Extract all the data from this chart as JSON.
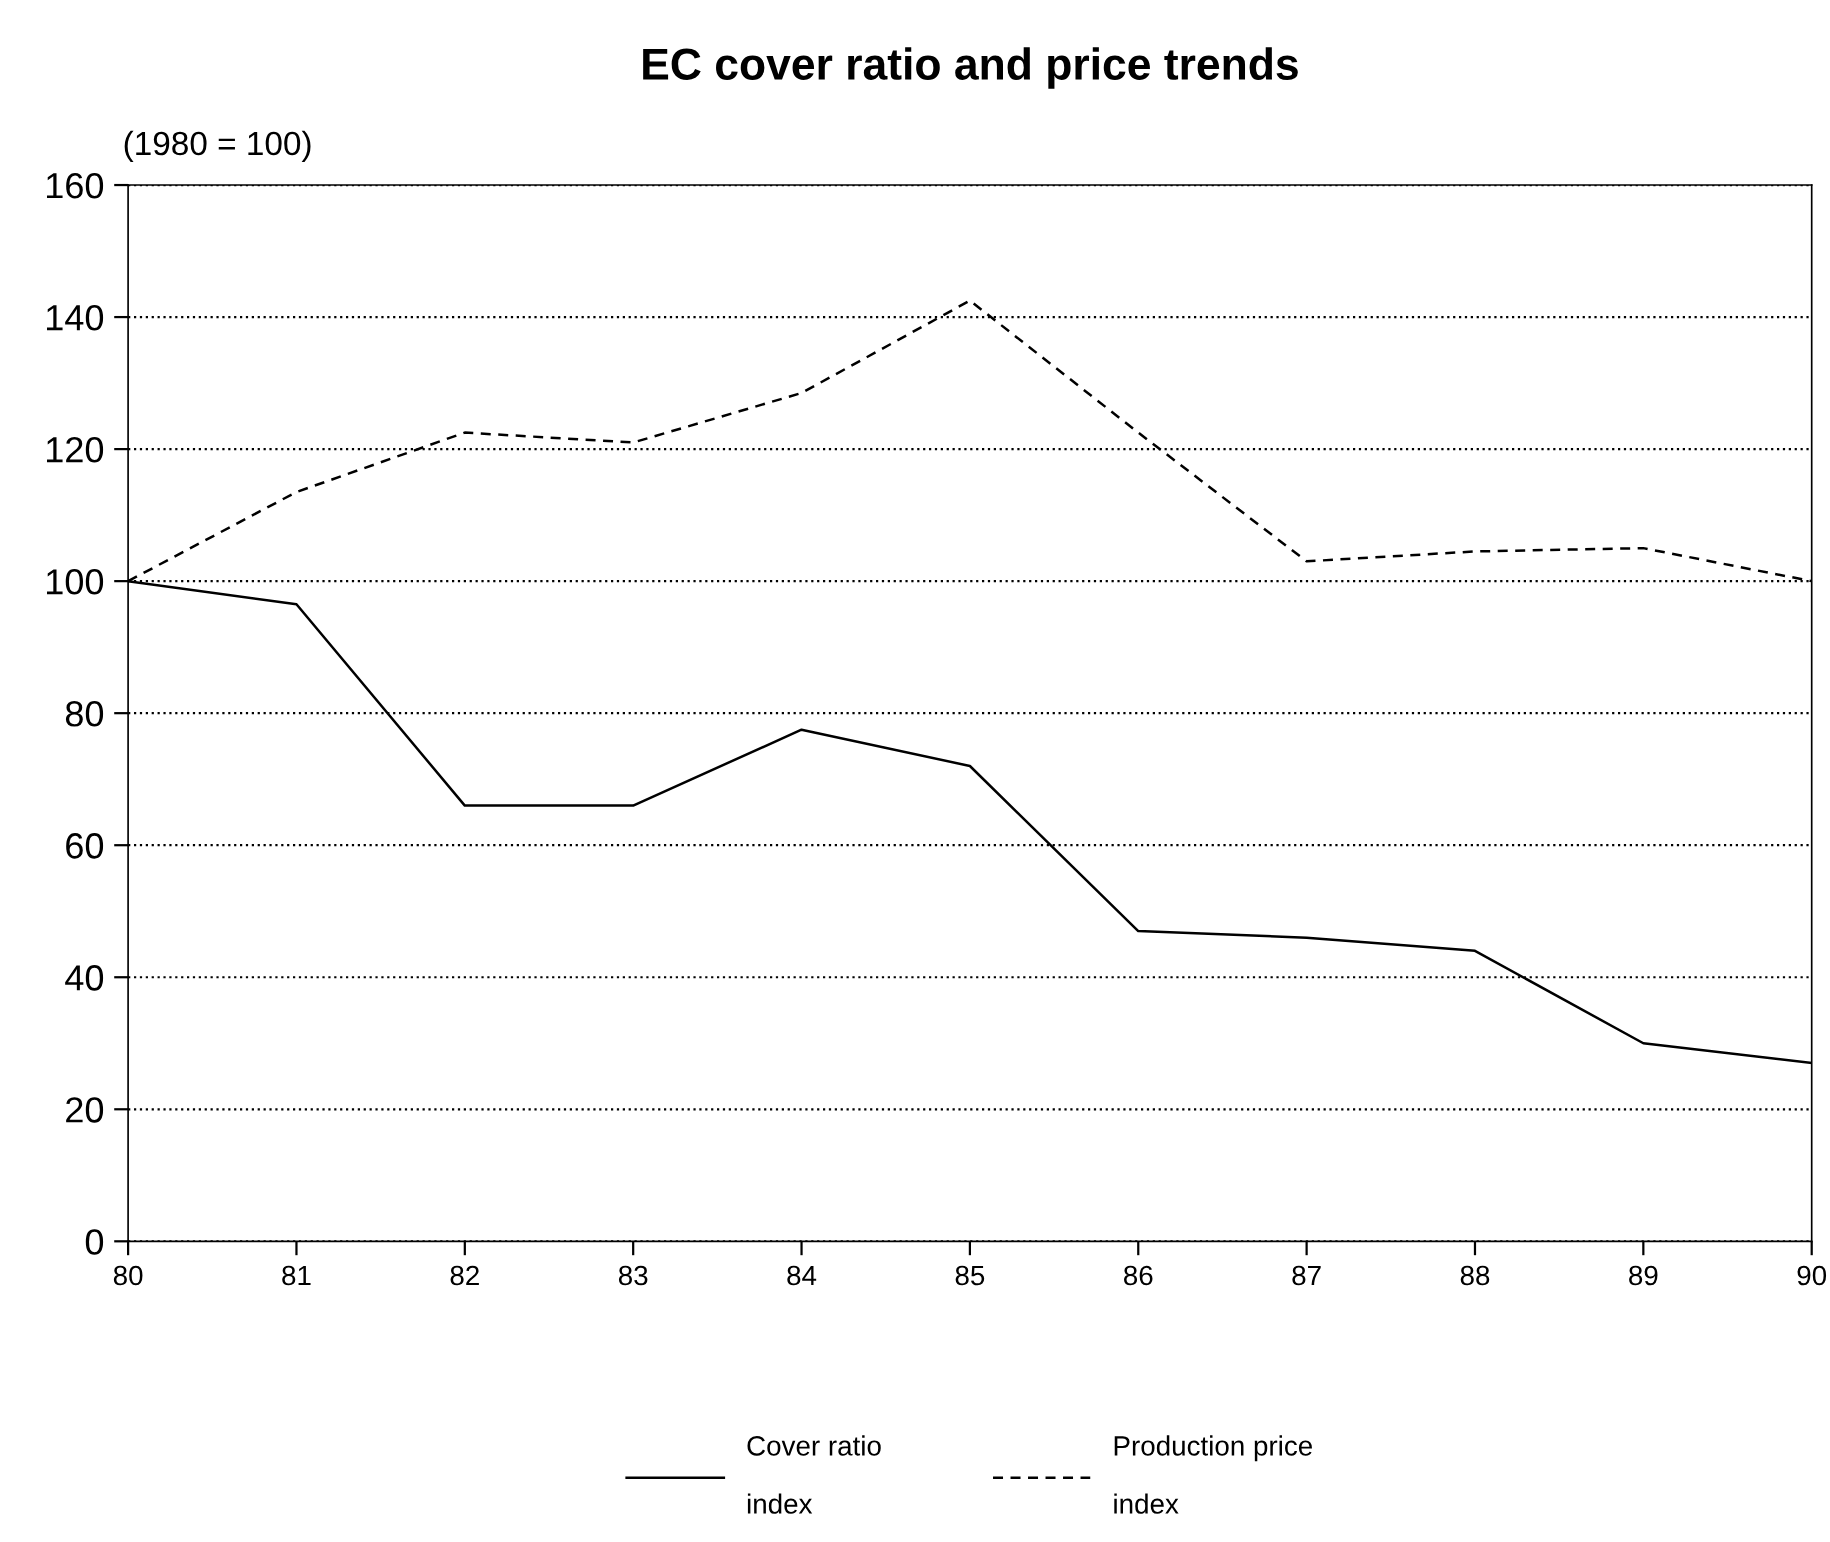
{
  "chart_data": {
    "type": "line",
    "title": "EC cover ratio and price trends",
    "ylabel": "(1980 = 100)",
    "x": [
      80,
      81,
      82,
      83,
      84,
      85,
      86,
      87,
      88,
      89,
      90
    ],
    "series": [
      {
        "name": "Cover ratio\nindex",
        "color": "#000000",
        "line_style": "solid",
        "values": [
          100,
          96.5,
          66,
          66,
          77.5,
          72,
          47,
          46,
          44,
          30,
          27
        ]
      },
      {
        "name": "Production price\nindex",
        "color": "#000000",
        "line_style": "dashed",
        "values": [
          100,
          113.5,
          122.5,
          121,
          128.5,
          142.5,
          122.5,
          103,
          104.5,
          105,
          100
        ]
      }
    ],
    "xlim": [
      80,
      90
    ],
    "xticks": [
      80,
      81,
      82,
      83,
      84,
      85,
      86,
      87,
      88,
      89,
      90
    ],
    "ylim": [
      0,
      160
    ],
    "yticks": [
      0,
      20,
      40,
      60,
      80,
      100,
      120,
      140,
      160
    ],
    "grid": "y",
    "legend": "bottom",
    "marker": "none"
  }
}
